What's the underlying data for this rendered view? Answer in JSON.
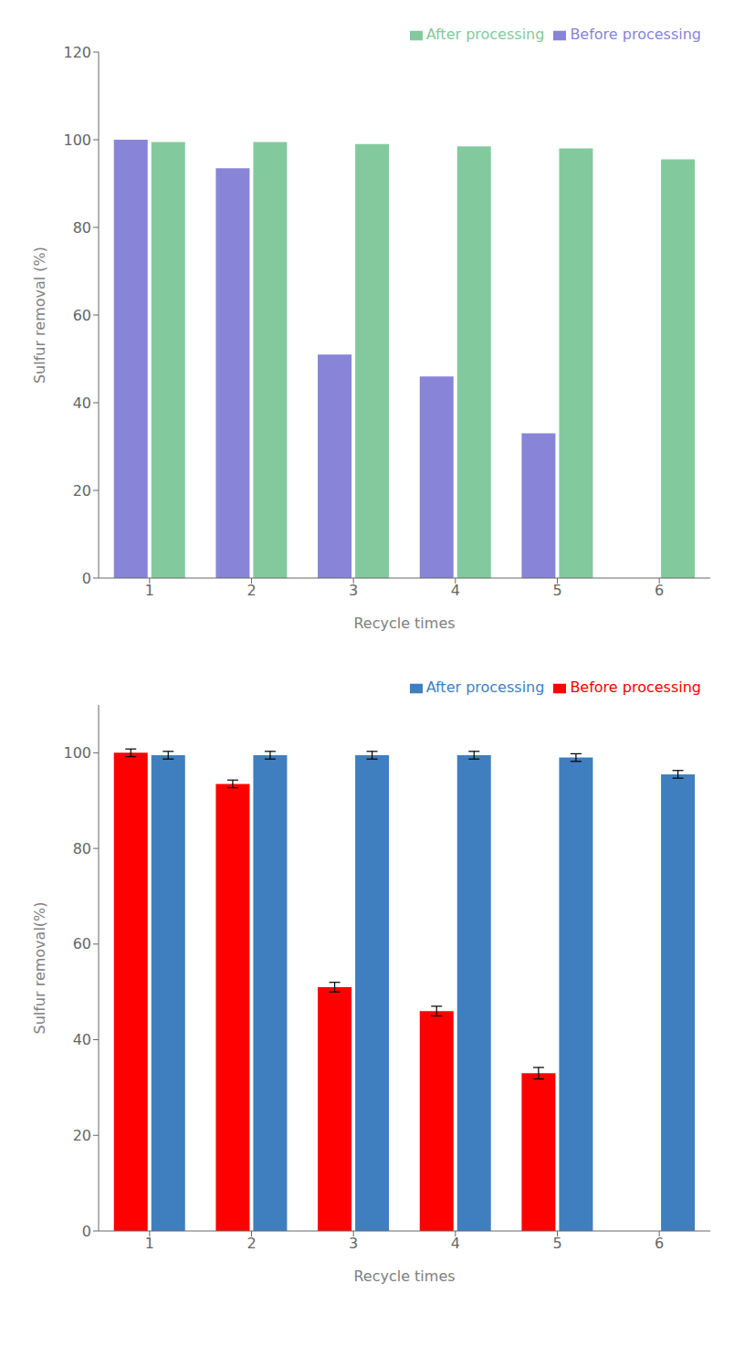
{
  "chart_data": [
    {
      "type": "bar",
      "categories": [
        1,
        2,
        3,
        4,
        5,
        6
      ],
      "xlabel": "Recycle times",
      "ylabel": "Sulfur removal (%)",
      "ylim": [
        0,
        120
      ],
      "yticks": [
        0,
        20,
        40,
        60,
        80,
        100,
        120
      ],
      "grid": false,
      "legend": "upper right",
      "series": [
        {
          "name": "Before processing",
          "values": [
            100,
            93.5,
            51,
            46,
            33,
            0
          ]
        },
        {
          "name": "After processing",
          "values": [
            99.5,
            99.5,
            99.0,
            98.5,
            98.0,
            95.5
          ]
        }
      ]
    },
    {
      "type": "bar",
      "categories": [
        1,
        2,
        3,
        4,
        5,
        6
      ],
      "xlabel": "Recycle times",
      "ylabel": "Sulfur removal(%)",
      "ylim": [
        0,
        110
      ],
      "yticks": [
        0,
        20,
        40,
        60,
        80,
        100
      ],
      "grid": false,
      "legend": "upper right",
      "series": [
        {
          "name": "Before processing",
          "color": "#FF0000",
          "values": [
            100,
            93.5,
            51,
            46,
            33,
            0
          ],
          "errors": [
            0.8,
            0.8,
            1.0,
            1.0,
            1.2,
            0
          ]
        },
        {
          "name": "After processing",
          "color": "#3F7FBF",
          "values": [
            99.5,
            99.5,
            99.5,
            99.5,
            99.0,
            95.5
          ],
          "errors": [
            0.8,
            0.8,
            0.8,
            0.8,
            0.8,
            0.8
          ]
        }
      ]
    }
  ]
}
